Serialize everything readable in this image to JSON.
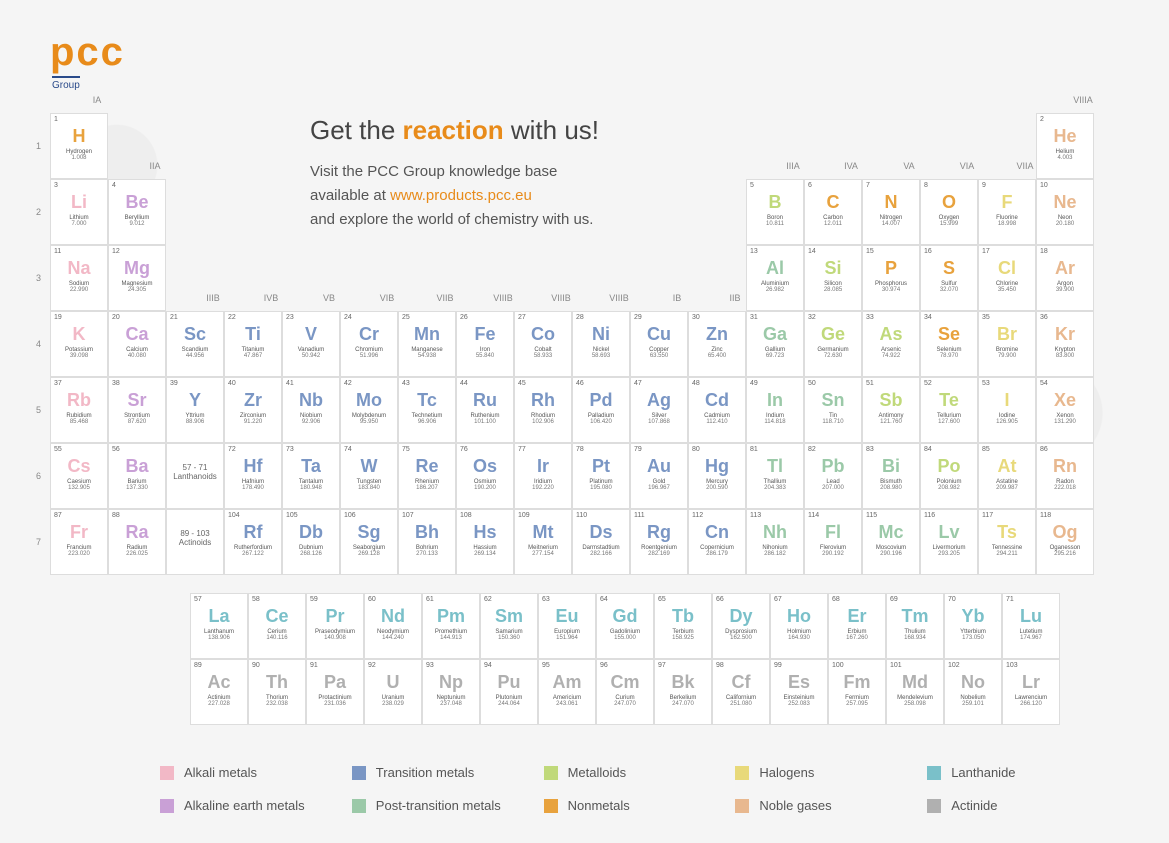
{
  "logo": {
    "text": "pcc",
    "sub": "Group"
  },
  "headline": {
    "pre": "Get the ",
    "bold": "reaction",
    "post": " with us!"
  },
  "subtext": {
    "line1": "Visit the PCC Group knowledge base",
    "line2_pre": "available at ",
    "link": "www.products.pcc.eu",
    "line3": "and explore the world of chemistry with us."
  },
  "groupLabels": [
    "IA",
    "IIA",
    "IIIB",
    "IVB",
    "VB",
    "VIB",
    "VIIB",
    "VIIIB",
    "VIIIB",
    "VIIIB",
    "IB",
    "IIB",
    "IIIA",
    "IVA",
    "VA",
    "VIA",
    "VIIA",
    "VIIIA"
  ],
  "periodLabels": [
    "1",
    "2",
    "3",
    "4",
    "5",
    "6",
    "7"
  ],
  "lanth_label": "57 - 71\nLanthanoids",
  "act_label": "89 - 103\nActinoids",
  "colors": {
    "alkali": "#f2b8c6",
    "alkaline": "#c9a0d6",
    "transition": "#7a96c4",
    "post": "#9bc9a8",
    "metalloid": "#c0d97a",
    "nonmetal": "#e8a23d",
    "halogen": "#e8d97a",
    "noble": "#e8b88f",
    "lanthanide": "#7ac0c9",
    "actinide": "#b0b0b0"
  },
  "legend": [
    {
      "label": "Alkali metals",
      "color": "alkali"
    },
    {
      "label": "Transition metals",
      "color": "transition"
    },
    {
      "label": "Metalloids",
      "color": "metalloid"
    },
    {
      "label": "Halogens",
      "color": "halogen"
    },
    {
      "label": "Lanthanide",
      "color": "lanthanide"
    },
    {
      "label": "Alkaline earth metals",
      "color": "alkaline"
    },
    {
      "label": "Post-transition metals",
      "color": "post"
    },
    {
      "label": "Nonmetals",
      "color": "nonmetal"
    },
    {
      "label": "Noble gases",
      "color": "noble"
    },
    {
      "label": "Actinide",
      "color": "actinide"
    }
  ],
  "elements": [
    {
      "n": 1,
      "s": "H",
      "name": "Hydrogen",
      "m": "1.008",
      "c": "nonmetal",
      "p": 1,
      "g": 1
    },
    {
      "n": 2,
      "s": "He",
      "name": "Helium",
      "m": "4.003",
      "c": "noble",
      "p": 1,
      "g": 18
    },
    {
      "n": 3,
      "s": "Li",
      "name": "Lithium",
      "m": "7.000",
      "c": "alkali",
      "p": 2,
      "g": 1
    },
    {
      "n": 4,
      "s": "Be",
      "name": "Beryllium",
      "m": "9.012",
      "c": "alkaline",
      "p": 2,
      "g": 2
    },
    {
      "n": 5,
      "s": "B",
      "name": "Boron",
      "m": "10.811",
      "c": "metalloid",
      "p": 2,
      "g": 13
    },
    {
      "n": 6,
      "s": "C",
      "name": "Carbon",
      "m": "12.011",
      "c": "nonmetal",
      "p": 2,
      "g": 14
    },
    {
      "n": 7,
      "s": "N",
      "name": "Nitrogen",
      "m": "14.007",
      "c": "nonmetal",
      "p": 2,
      "g": 15
    },
    {
      "n": 8,
      "s": "O",
      "name": "Oxygen",
      "m": "15.999",
      "c": "nonmetal",
      "p": 2,
      "g": 16
    },
    {
      "n": 9,
      "s": "F",
      "name": "Fluorine",
      "m": "18.998",
      "c": "halogen",
      "p": 2,
      "g": 17
    },
    {
      "n": 10,
      "s": "Ne",
      "name": "Neon",
      "m": "20.180",
      "c": "noble",
      "p": 2,
      "g": 18
    },
    {
      "n": 11,
      "s": "Na",
      "name": "Sodium",
      "m": "22.990",
      "c": "alkali",
      "p": 3,
      "g": 1
    },
    {
      "n": 12,
      "s": "Mg",
      "name": "Magnesium",
      "m": "24.305",
      "c": "alkaline",
      "p": 3,
      "g": 2
    },
    {
      "n": 13,
      "s": "Al",
      "name": "Aluminium",
      "m": "26.982",
      "c": "post",
      "p": 3,
      "g": 13
    },
    {
      "n": 14,
      "s": "Si",
      "name": "Silicon",
      "m": "28.085",
      "c": "metalloid",
      "p": 3,
      "g": 14
    },
    {
      "n": 15,
      "s": "P",
      "name": "Phosphorus",
      "m": "30.974",
      "c": "nonmetal",
      "p": 3,
      "g": 15
    },
    {
      "n": 16,
      "s": "S",
      "name": "Sulfur",
      "m": "32.070",
      "c": "nonmetal",
      "p": 3,
      "g": 16
    },
    {
      "n": 17,
      "s": "Cl",
      "name": "Chlorine",
      "m": "35.450",
      "c": "halogen",
      "p": 3,
      "g": 17
    },
    {
      "n": 18,
      "s": "Ar",
      "name": "Argon",
      "m": "39.900",
      "c": "noble",
      "p": 3,
      "g": 18
    },
    {
      "n": 19,
      "s": "K",
      "name": "Potassium",
      "m": "39.098",
      "c": "alkali",
      "p": 4,
      "g": 1
    },
    {
      "n": 20,
      "s": "Ca",
      "name": "Calcium",
      "m": "40.080",
      "c": "alkaline",
      "p": 4,
      "g": 2
    },
    {
      "n": 21,
      "s": "Sc",
      "name": "Scandium",
      "m": "44.956",
      "c": "transition",
      "p": 4,
      "g": 3
    },
    {
      "n": 22,
      "s": "Ti",
      "name": "Titanium",
      "m": "47.867",
      "c": "transition",
      "p": 4,
      "g": 4
    },
    {
      "n": 23,
      "s": "V",
      "name": "Vanadium",
      "m": "50.942",
      "c": "transition",
      "p": 4,
      "g": 5
    },
    {
      "n": 24,
      "s": "Cr",
      "name": "Chromium",
      "m": "51.996",
      "c": "transition",
      "p": 4,
      "g": 6
    },
    {
      "n": 25,
      "s": "Mn",
      "name": "Manganese",
      "m": "54.938",
      "c": "transition",
      "p": 4,
      "g": 7
    },
    {
      "n": 26,
      "s": "Fe",
      "name": "Iron",
      "m": "55.840",
      "c": "transition",
      "p": 4,
      "g": 8
    },
    {
      "n": 27,
      "s": "Co",
      "name": "Cobalt",
      "m": "58.933",
      "c": "transition",
      "p": 4,
      "g": 9
    },
    {
      "n": 28,
      "s": "Ni",
      "name": "Nickel",
      "m": "58.693",
      "c": "transition",
      "p": 4,
      "g": 10
    },
    {
      "n": 29,
      "s": "Cu",
      "name": "Copper",
      "m": "63.550",
      "c": "transition",
      "p": 4,
      "g": 11
    },
    {
      "n": 30,
      "s": "Zn",
      "name": "Zinc",
      "m": "65.400",
      "c": "transition",
      "p": 4,
      "g": 12
    },
    {
      "n": 31,
      "s": "Ga",
      "name": "Gallium",
      "m": "69.723",
      "c": "post",
      "p": 4,
      "g": 13
    },
    {
      "n": 32,
      "s": "Ge",
      "name": "Germanium",
      "m": "72.630",
      "c": "metalloid",
      "p": 4,
      "g": 14
    },
    {
      "n": 33,
      "s": "As",
      "name": "Arsenic",
      "m": "74.922",
      "c": "metalloid",
      "p": 4,
      "g": 15
    },
    {
      "n": 34,
      "s": "Se",
      "name": "Selenium",
      "m": "78.970",
      "c": "nonmetal",
      "p": 4,
      "g": 16
    },
    {
      "n": 35,
      "s": "Br",
      "name": "Bromine",
      "m": "79.900",
      "c": "halogen",
      "p": 4,
      "g": 17
    },
    {
      "n": 36,
      "s": "Kr",
      "name": "Krypton",
      "m": "83.800",
      "c": "noble",
      "p": 4,
      "g": 18
    },
    {
      "n": 37,
      "s": "Rb",
      "name": "Rubidium",
      "m": "85.468",
      "c": "alkali",
      "p": 5,
      "g": 1
    },
    {
      "n": 38,
      "s": "Sr",
      "name": "Strontium",
      "m": "87.620",
      "c": "alkaline",
      "p": 5,
      "g": 2
    },
    {
      "n": 39,
      "s": "Y",
      "name": "Yttrium",
      "m": "88.906",
      "c": "transition",
      "p": 5,
      "g": 3
    },
    {
      "n": 40,
      "s": "Zr",
      "name": "Zirconium",
      "m": "91.220",
      "c": "transition",
      "p": 5,
      "g": 4
    },
    {
      "n": 41,
      "s": "Nb",
      "name": "Niobium",
      "m": "92.906",
      "c": "transition",
      "p": 5,
      "g": 5
    },
    {
      "n": 42,
      "s": "Mo",
      "name": "Molybdenum",
      "m": "95.950",
      "c": "transition",
      "p": 5,
      "g": 6
    },
    {
      "n": 43,
      "s": "Tc",
      "name": "Technetium",
      "m": "96.906",
      "c": "transition",
      "p": 5,
      "g": 7
    },
    {
      "n": 44,
      "s": "Ru",
      "name": "Ruthenium",
      "m": "101.100",
      "c": "transition",
      "p": 5,
      "g": 8
    },
    {
      "n": 45,
      "s": "Rh",
      "name": "Rhodium",
      "m": "102.906",
      "c": "transition",
      "p": 5,
      "g": 9
    },
    {
      "n": 46,
      "s": "Pd",
      "name": "Palladium",
      "m": "106.420",
      "c": "transition",
      "p": 5,
      "g": 10
    },
    {
      "n": 47,
      "s": "Ag",
      "name": "Silver",
      "m": "107.868",
      "c": "transition",
      "p": 5,
      "g": 11
    },
    {
      "n": 48,
      "s": "Cd",
      "name": "Cadmium",
      "m": "112.410",
      "c": "transition",
      "p": 5,
      "g": 12
    },
    {
      "n": 49,
      "s": "In",
      "name": "Indium",
      "m": "114.818",
      "c": "post",
      "p": 5,
      "g": 13
    },
    {
      "n": 50,
      "s": "Sn",
      "name": "Tin",
      "m": "118.710",
      "c": "post",
      "p": 5,
      "g": 14
    },
    {
      "n": 51,
      "s": "Sb",
      "name": "Antimony",
      "m": "121.760",
      "c": "metalloid",
      "p": 5,
      "g": 15
    },
    {
      "n": 52,
      "s": "Te",
      "name": "Tellurium",
      "m": "127.600",
      "c": "metalloid",
      "p": 5,
      "g": 16
    },
    {
      "n": 53,
      "s": "I",
      "name": "Iodine",
      "m": "126.905",
      "c": "halogen",
      "p": 5,
      "g": 17
    },
    {
      "n": 54,
      "s": "Xe",
      "name": "Xenon",
      "m": "131.290",
      "c": "noble",
      "p": 5,
      "g": 18
    },
    {
      "n": 55,
      "s": "Cs",
      "name": "Caesium",
      "m": "132.905",
      "c": "alkali",
      "p": 6,
      "g": 1
    },
    {
      "n": 56,
      "s": "Ba",
      "name": "Barium",
      "m": "137.330",
      "c": "alkaline",
      "p": 6,
      "g": 2
    },
    {
      "n": 72,
      "s": "Hf",
      "name": "Hafnium",
      "m": "178.490",
      "c": "transition",
      "p": 6,
      "g": 4
    },
    {
      "n": 73,
      "s": "Ta",
      "name": "Tantalum",
      "m": "180.948",
      "c": "transition",
      "p": 6,
      "g": 5
    },
    {
      "n": 74,
      "s": "W",
      "name": "Tungsten",
      "m": "183.840",
      "c": "transition",
      "p": 6,
      "g": 6
    },
    {
      "n": 75,
      "s": "Re",
      "name": "Rhenium",
      "m": "186.207",
      "c": "transition",
      "p": 6,
      "g": 7
    },
    {
      "n": 76,
      "s": "Os",
      "name": "Osmium",
      "m": "190.200",
      "c": "transition",
      "p": 6,
      "g": 8
    },
    {
      "n": 77,
      "s": "Ir",
      "name": "Iridium",
      "m": "192.220",
      "c": "transition",
      "p": 6,
      "g": 9
    },
    {
      "n": 78,
      "s": "Pt",
      "name": "Platinum",
      "m": "195.080",
      "c": "transition",
      "p": 6,
      "g": 10
    },
    {
      "n": 79,
      "s": "Au",
      "name": "Gold",
      "m": "196.967",
      "c": "transition",
      "p": 6,
      "g": 11
    },
    {
      "n": 80,
      "s": "Hg",
      "name": "Mercury",
      "m": "200.590",
      "c": "transition",
      "p": 6,
      "g": 12
    },
    {
      "n": 81,
      "s": "Tl",
      "name": "Thallium",
      "m": "204.383",
      "c": "post",
      "p": 6,
      "g": 13
    },
    {
      "n": 82,
      "s": "Pb",
      "name": "Lead",
      "m": "207.000",
      "c": "post",
      "p": 6,
      "g": 14
    },
    {
      "n": 83,
      "s": "Bi",
      "name": "Bismuth",
      "m": "208.980",
      "c": "post",
      "p": 6,
      "g": 15
    },
    {
      "n": 84,
      "s": "Po",
      "name": "Polonium",
      "m": "208.982",
      "c": "metalloid",
      "p": 6,
      "g": 16
    },
    {
      "n": 85,
      "s": "At",
      "name": "Astatine",
      "m": "209.987",
      "c": "halogen",
      "p": 6,
      "g": 17
    },
    {
      "n": 86,
      "s": "Rn",
      "name": "Radon",
      "m": "222.018",
      "c": "noble",
      "p": 6,
      "g": 18
    },
    {
      "n": 87,
      "s": "Fr",
      "name": "Francium",
      "m": "223.020",
      "c": "alkali",
      "p": 7,
      "g": 1
    },
    {
      "n": 88,
      "s": "Ra",
      "name": "Radium",
      "m": "226.025",
      "c": "alkaline",
      "p": 7,
      "g": 2
    },
    {
      "n": 104,
      "s": "Rf",
      "name": "Rutherfordium",
      "m": "267.122",
      "c": "transition",
      "p": 7,
      "g": 4
    },
    {
      "n": 105,
      "s": "Db",
      "name": "Dubnium",
      "m": "268.126",
      "c": "transition",
      "p": 7,
      "g": 5
    },
    {
      "n": 106,
      "s": "Sg",
      "name": "Seaborgium",
      "m": "269.128",
      "c": "transition",
      "p": 7,
      "g": 6
    },
    {
      "n": 107,
      "s": "Bh",
      "name": "Bohrium",
      "m": "270.133",
      "c": "transition",
      "p": 7,
      "g": 7
    },
    {
      "n": 108,
      "s": "Hs",
      "name": "Hassium",
      "m": "269.134",
      "c": "transition",
      "p": 7,
      "g": 8
    },
    {
      "n": 109,
      "s": "Mt",
      "name": "Meitnerium",
      "m": "277.154",
      "c": "transition",
      "p": 7,
      "g": 9
    },
    {
      "n": 110,
      "s": "Ds",
      "name": "Darmstadtium",
      "m": "282.166",
      "c": "transition",
      "p": 7,
      "g": 10
    },
    {
      "n": 111,
      "s": "Rg",
      "name": "Roentgenium",
      "m": "282.169",
      "c": "transition",
      "p": 7,
      "g": 11
    },
    {
      "n": 112,
      "s": "Cn",
      "name": "Copernicium",
      "m": "286.179",
      "c": "transition",
      "p": 7,
      "g": 12
    },
    {
      "n": 113,
      "s": "Nh",
      "name": "Nihonium",
      "m": "286.182",
      "c": "post",
      "p": 7,
      "g": 13
    },
    {
      "n": 114,
      "s": "Fl",
      "name": "Flerovium",
      "m": "290.192",
      "c": "post",
      "p": 7,
      "g": 14
    },
    {
      "n": 115,
      "s": "Mc",
      "name": "Moscovium",
      "m": "290.196",
      "c": "post",
      "p": 7,
      "g": 15
    },
    {
      "n": 116,
      "s": "Lv",
      "name": "Livermorium",
      "m": "293.205",
      "c": "post",
      "p": 7,
      "g": 16
    },
    {
      "n": 117,
      "s": "Ts",
      "name": "Tennessine",
      "m": "294.211",
      "c": "halogen",
      "p": 7,
      "g": 17
    },
    {
      "n": 118,
      "s": "Og",
      "name": "Oganesson",
      "m": "295.216",
      "c": "noble",
      "p": 7,
      "g": 18
    }
  ],
  "fblock": [
    {
      "n": 57,
      "s": "La",
      "name": "Lanthanum",
      "m": "138.906",
      "c": "lanthanide"
    },
    {
      "n": 58,
      "s": "Ce",
      "name": "Cerium",
      "m": "140.116",
      "c": "lanthanide"
    },
    {
      "n": 59,
      "s": "Pr",
      "name": "Praseodymium",
      "m": "140.908",
      "c": "lanthanide"
    },
    {
      "n": 60,
      "s": "Nd",
      "name": "Neodymium",
      "m": "144.240",
      "c": "lanthanide"
    },
    {
      "n": 61,
      "s": "Pm",
      "name": "Promethium",
      "m": "144.913",
      "c": "lanthanide"
    },
    {
      "n": 62,
      "s": "Sm",
      "name": "Samarium",
      "m": "150.360",
      "c": "lanthanide"
    },
    {
      "n": 63,
      "s": "Eu",
      "name": "Europium",
      "m": "151.964",
      "c": "lanthanide"
    },
    {
      "n": 64,
      "s": "Gd",
      "name": "Gadolinium",
      "m": "155.000",
      "c": "lanthanide"
    },
    {
      "n": 65,
      "s": "Tb",
      "name": "Terbium",
      "m": "158.925",
      "c": "lanthanide"
    },
    {
      "n": 66,
      "s": "Dy",
      "name": "Dysprosium",
      "m": "162.500",
      "c": "lanthanide"
    },
    {
      "n": 67,
      "s": "Ho",
      "name": "Holmium",
      "m": "164.930",
      "c": "lanthanide"
    },
    {
      "n": 68,
      "s": "Er",
      "name": "Erbium",
      "m": "167.260",
      "c": "lanthanide"
    },
    {
      "n": 69,
      "s": "Tm",
      "name": "Thulium",
      "m": "168.934",
      "c": "lanthanide"
    },
    {
      "n": 70,
      "s": "Yb",
      "name": "Ytterbium",
      "m": "173.050",
      "c": "lanthanide"
    },
    {
      "n": 71,
      "s": "Lu",
      "name": "Lutetium",
      "m": "174.967",
      "c": "lanthanide"
    },
    {
      "n": 89,
      "s": "Ac",
      "name": "Actinium",
      "m": "227.028",
      "c": "actinide"
    },
    {
      "n": 90,
      "s": "Th",
      "name": "Thorium",
      "m": "232.038",
      "c": "actinide"
    },
    {
      "n": 91,
      "s": "Pa",
      "name": "Protactinium",
      "m": "231.036",
      "c": "actinide"
    },
    {
      "n": 92,
      "s": "U",
      "name": "Uranium",
      "m": "238.029",
      "c": "actinide"
    },
    {
      "n": 93,
      "s": "Np",
      "name": "Neptunium",
      "m": "237.048",
      "c": "actinide"
    },
    {
      "n": 94,
      "s": "Pu",
      "name": "Plutonium",
      "m": "244.064",
      "c": "actinide"
    },
    {
      "n": 95,
      "s": "Am",
      "name": "Americium",
      "m": "243.061",
      "c": "actinide"
    },
    {
      "n": 96,
      "s": "Cm",
      "name": "Curium",
      "m": "247.070",
      "c": "actinide"
    },
    {
      "n": 97,
      "s": "Bk",
      "name": "Berkelium",
      "m": "247.070",
      "c": "actinide"
    },
    {
      "n": 98,
      "s": "Cf",
      "name": "Californium",
      "m": "251.080",
      "c": "actinide"
    },
    {
      "n": 99,
      "s": "Es",
      "name": "Einsteinium",
      "m": "252.083",
      "c": "actinide"
    },
    {
      "n": 100,
      "s": "Fm",
      "name": "Fermium",
      "m": "257.095",
      "c": "actinide"
    },
    {
      "n": 101,
      "s": "Md",
      "name": "Mendelevium",
      "m": "258.098",
      "c": "actinide"
    },
    {
      "n": 102,
      "s": "No",
      "name": "Nobelium",
      "m": "259.101",
      "c": "actinide"
    },
    {
      "n": 103,
      "s": "Lr",
      "name": "Lawrencium",
      "m": "266.120",
      "c": "actinide"
    }
  ]
}
